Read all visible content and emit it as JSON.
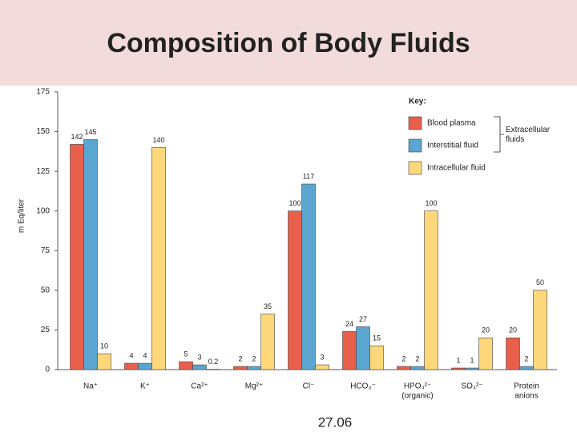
{
  "title": "Composition of Body Fluids",
  "footer": "27.06",
  "chart_data": {
    "type": "bar",
    "y_label": "m Eq/liter",
    "categories": [
      "Na⁺",
      "K⁺",
      "Ca²⁺",
      "Mg²⁺",
      "Cl⁻",
      "HCO₃⁻",
      [
        "HPO₄²⁻",
        "(organic)"
      ],
      "SO₄²⁻",
      [
        "Protein",
        "anions"
      ]
    ],
    "series": [
      {
        "name": "Blood plasma",
        "color": "#e8604c",
        "values": [
          142,
          4,
          5,
          2,
          100,
          24,
          2,
          1,
          20
        ]
      },
      {
        "name": "Interstitial fluid",
        "color": "#5ba6d0",
        "values": [
          145,
          4,
          3,
          2,
          117,
          27,
          2,
          1,
          2
        ]
      },
      {
        "name": "Intracellular fluid",
        "color": "#fdd77a",
        "values": [
          10,
          140,
          0.2,
          35,
          3,
          15,
          100,
          20,
          50
        ]
      }
    ],
    "legend_title": "Key:",
    "legend_group": "Extracellular fluids",
    "ylim": [
      0,
      175
    ],
    "yticks": [
      0,
      25,
      50,
      75,
      100,
      125,
      150,
      175
    ]
  }
}
